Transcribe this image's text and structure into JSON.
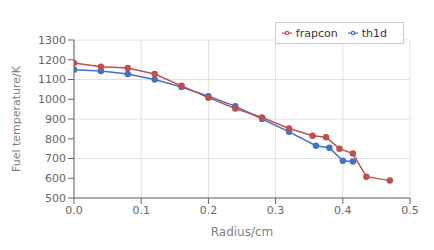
{
  "chart_data": {
    "type": "line",
    "xlabel": "Radius/cm",
    "ylabel": "Fuel temperature/K",
    "xlim": [
      0,
      0.5
    ],
    "xticks": [
      {
        "value": 0,
        "label": "0.0"
      },
      0.1,
      0.2,
      0.3,
      0.4,
      0.5
    ],
    "ylim": [
      500,
      1300
    ],
    "yticks": [
      500,
      600,
      700,
      800,
      900,
      1000,
      1100,
      1200,
      1300
    ],
    "grid": true,
    "legend": "upper right",
    "marker": "circle",
    "series": [
      {
        "name": "th1d",
        "color": "#4472C4",
        "x": [
          0.0,
          0.04,
          0.08,
          0.12,
          0.16,
          0.2,
          0.24,
          0.28,
          0.32,
          0.36,
          0.38,
          0.4,
          0.415
        ],
        "values": [
          1150,
          1143,
          1128,
          1100,
          1062,
          1015,
          965,
          900,
          835,
          765,
          755,
          688,
          685
        ]
      },
      {
        "name": "frapcon",
        "color": "#C0504D",
        "x": [
          0.0,
          0.04,
          0.08,
          0.12,
          0.16,
          0.2,
          0.24,
          0.28,
          0.32,
          0.355,
          0.375,
          0.395,
          0.415,
          0.435,
          0.47
        ],
        "values": [
          1183,
          1165,
          1158,
          1128,
          1068,
          1008,
          953,
          908,
          852,
          815,
          808,
          750,
          725,
          608,
          588
        ]
      }
    ]
  }
}
